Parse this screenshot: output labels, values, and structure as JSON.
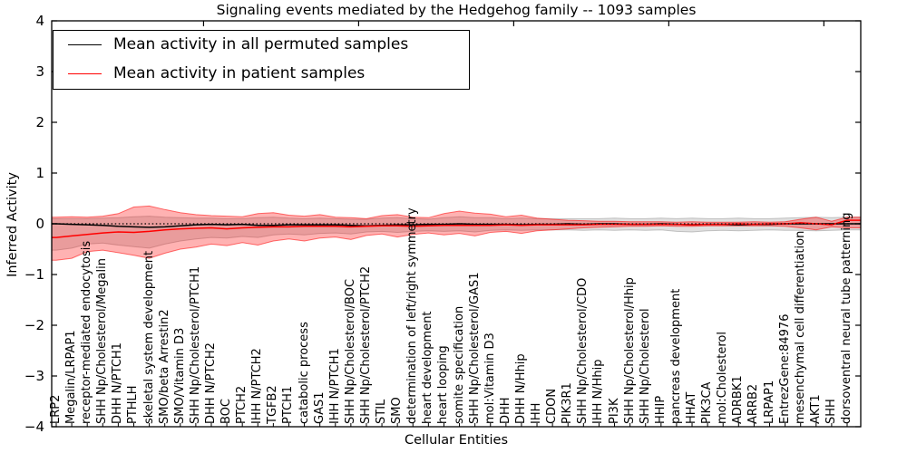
{
  "accent_colors": {
    "patient_red": "#ff0000",
    "permuted_black": "#000000",
    "gray_band": "#999999",
    "background": "#ffffff"
  },
  "chart_data": {
    "type": "line",
    "title": "Signaling events mediated by the Hedgehog family -- 1093 samples",
    "xlabel": "Cellular Entities",
    "ylabel": "Inferred Activity",
    "ylim": [
      -4,
      4
    ],
    "grid": false,
    "legend_position": "upper left",
    "yticks": [
      {
        "v": 4,
        "label": "4"
      },
      {
        "v": 3,
        "label": "3"
      },
      {
        "v": 2,
        "label": "2"
      },
      {
        "v": 1,
        "label": "1"
      },
      {
        "v": 0,
        "label": "0"
      },
      {
        "v": -1,
        "label": "−1"
      },
      {
        "v": -2,
        "label": "−2"
      },
      {
        "v": -3,
        "label": "−3"
      },
      {
        "v": -4,
        "label": "−4"
      }
    ],
    "top_ticks_at": [
      9.5,
      19.5,
      29.5,
      39.5,
      49.5
    ],
    "zero_line": 0,
    "categories": [
      "LRP2",
      "Megalin/LRPAP1",
      "receptor-mediated endocytosis",
      "SHH Np/Cholesterol/Megalin",
      "DHH N/PTCH1",
      "PTHLH",
      "skeletal system development",
      "SMO/beta Arrestin2",
      "SMO/Vitamin D3",
      "SHH Np/Cholesterol/PTCH1",
      "DHH N/PTCH2",
      "BOC",
      "PTCH2",
      "IHH N/PTCH2",
      "TGFB2",
      "PTCH1",
      "catabolic process",
      "GAS1",
      "IHH N/PTCH1",
      "SHH Np/Cholesterol/BOC",
      "SHH Np/Cholesterol/PTCH2",
      "STIL",
      "SMO",
      "determination of left/right symmetry",
      "heart development",
      "heart looping",
      "somite specification",
      "SHH Np/Cholesterol/GAS1",
      "mol:Vitamin D3",
      "DHH",
      "DHH N/Hhip",
      "IHH",
      "CDON",
      "PIK3R1",
      "SHH Np/Cholesterol/CDO",
      "IHH N/Hhip",
      "PI3K",
      "SHH Np/Cholesterol/Hhip",
      "SHH Np/Cholesterol",
      "HHIP",
      "pancreas development",
      "HHAT",
      "PIK3CA",
      "mol:Cholesterol",
      "ADRBK1",
      "ARRB2",
      "LRPAP1",
      "EntrezGene:84976",
      "mesenchymal cell differentiation",
      "AKT1",
      "SHH",
      "dorsoventral neural tube patterning"
    ],
    "series": [
      {
        "name": "Mean activity in all permuted samples",
        "color": "#000000",
        "values": [
          0.0,
          -0.01,
          -0.02,
          -0.03,
          -0.05,
          -0.06,
          -0.07,
          -0.06,
          -0.04,
          -0.02,
          -0.01,
          -0.02,
          -0.01,
          -0.03,
          -0.03,
          -0.02,
          -0.02,
          -0.02,
          -0.02,
          -0.03,
          -0.04,
          -0.03,
          -0.02,
          -0.02,
          -0.01,
          -0.01,
          0.0,
          -0.01,
          -0.01,
          -0.01,
          -0.02,
          -0.01,
          -0.01,
          0.0,
          -0.01,
          0.0,
          0.0,
          -0.01,
          -0.01,
          0.0,
          -0.01,
          -0.02,
          -0.01,
          -0.01,
          -0.02,
          -0.01,
          -0.01,
          0.0,
          0.0,
          0.0,
          0.0,
          0.0
        ]
      },
      {
        "name": "Mean activity in patient samples",
        "color": "#ff0000",
        "values": [
          -0.27,
          -0.24,
          -0.21,
          -0.18,
          -0.16,
          -0.17,
          -0.15,
          -0.12,
          -0.1,
          -0.09,
          -0.08,
          -0.1,
          -0.08,
          -0.07,
          -0.06,
          -0.06,
          -0.05,
          -0.05,
          -0.05,
          -0.06,
          -0.05,
          -0.04,
          -0.04,
          -0.05,
          -0.04,
          -0.03,
          -0.03,
          -0.03,
          -0.03,
          -0.02,
          -0.03,
          -0.02,
          -0.02,
          -0.02,
          -0.02,
          -0.01,
          -0.01,
          -0.01,
          -0.01,
          -0.01,
          -0.01,
          -0.02,
          -0.01,
          -0.01,
          0.0,
          -0.01,
          0.0,
          0.0,
          0.02,
          0.0,
          -0.02,
          0.07
        ]
      }
    ],
    "bands": [
      {
        "name": "permuted-samples-spread-band",
        "color": "#999999",
        "upper": [
          0.1,
          0.1,
          0.1,
          0.11,
          0.12,
          0.14,
          0.15,
          0.13,
          0.12,
          0.11,
          0.11,
          0.1,
          0.1,
          0.12,
          0.13,
          0.11,
          0.1,
          0.11,
          0.1,
          0.09,
          0.09,
          0.11,
          0.12,
          0.1,
          0.09,
          0.12,
          0.14,
          0.12,
          0.12,
          0.1,
          0.11,
          0.1,
          0.1,
          0.1,
          0.1,
          0.1,
          0.11,
          0.1,
          0.1,
          0.11,
          0.1,
          0.11,
          0.1,
          0.1,
          0.11,
          0.1,
          0.1,
          0.11,
          0.12,
          0.13,
          0.12,
          0.13
        ],
        "lower": [
          -0.52,
          -0.48,
          -0.4,
          -0.38,
          -0.42,
          -0.45,
          -0.48,
          -0.4,
          -0.34,
          -0.3,
          -0.27,
          -0.28,
          -0.25,
          -0.27,
          -0.22,
          -0.2,
          -0.22,
          -0.19,
          -0.18,
          -0.2,
          -0.16,
          -0.15,
          -0.17,
          -0.15,
          -0.14,
          -0.15,
          -0.14,
          -0.16,
          -0.13,
          -0.12,
          -0.13,
          -0.12,
          -0.12,
          -0.12,
          -0.13,
          -0.12,
          -0.13,
          -0.12,
          -0.13,
          -0.12,
          -0.15,
          -0.16,
          -0.14,
          -0.13,
          -0.14,
          -0.13,
          -0.12,
          -0.13,
          -0.13,
          -0.14,
          -0.13,
          -0.12
        ]
      },
      {
        "name": "patient-samples-spread-band",
        "color": "#ff0000",
        "upper": [
          0.13,
          0.14,
          0.13,
          0.15,
          0.2,
          0.33,
          0.35,
          0.28,
          0.22,
          0.18,
          0.16,
          0.15,
          0.14,
          0.2,
          0.22,
          0.17,
          0.15,
          0.18,
          0.13,
          0.12,
          0.1,
          0.16,
          0.18,
          0.13,
          0.12,
          0.2,
          0.25,
          0.21,
          0.19,
          0.14,
          0.17,
          0.11,
          0.09,
          0.07,
          0.06,
          0.05,
          0.05,
          0.04,
          0.04,
          0.04,
          0.03,
          0.04,
          0.03,
          0.03,
          0.03,
          0.04,
          0.03,
          0.04,
          0.09,
          0.13,
          0.05,
          0.13
        ],
        "lower": [
          -0.72,
          -0.68,
          -0.55,
          -0.52,
          -0.57,
          -0.62,
          -0.68,
          -0.58,
          -0.5,
          -0.46,
          -0.4,
          -0.43,
          -0.37,
          -0.42,
          -0.34,
          -0.3,
          -0.34,
          -0.28,
          -0.26,
          -0.31,
          -0.23,
          -0.2,
          -0.26,
          -0.21,
          -0.18,
          -0.22,
          -0.19,
          -0.24,
          -0.17,
          -0.15,
          -0.19,
          -0.14,
          -0.12,
          -0.1,
          -0.08,
          -0.07,
          -0.06,
          -0.05,
          -0.05,
          -0.04,
          -0.05,
          -0.05,
          -0.04,
          -0.04,
          -0.04,
          -0.04,
          -0.04,
          -0.05,
          -0.08,
          -0.12,
          -0.06,
          -0.08
        ]
      }
    ]
  }
}
